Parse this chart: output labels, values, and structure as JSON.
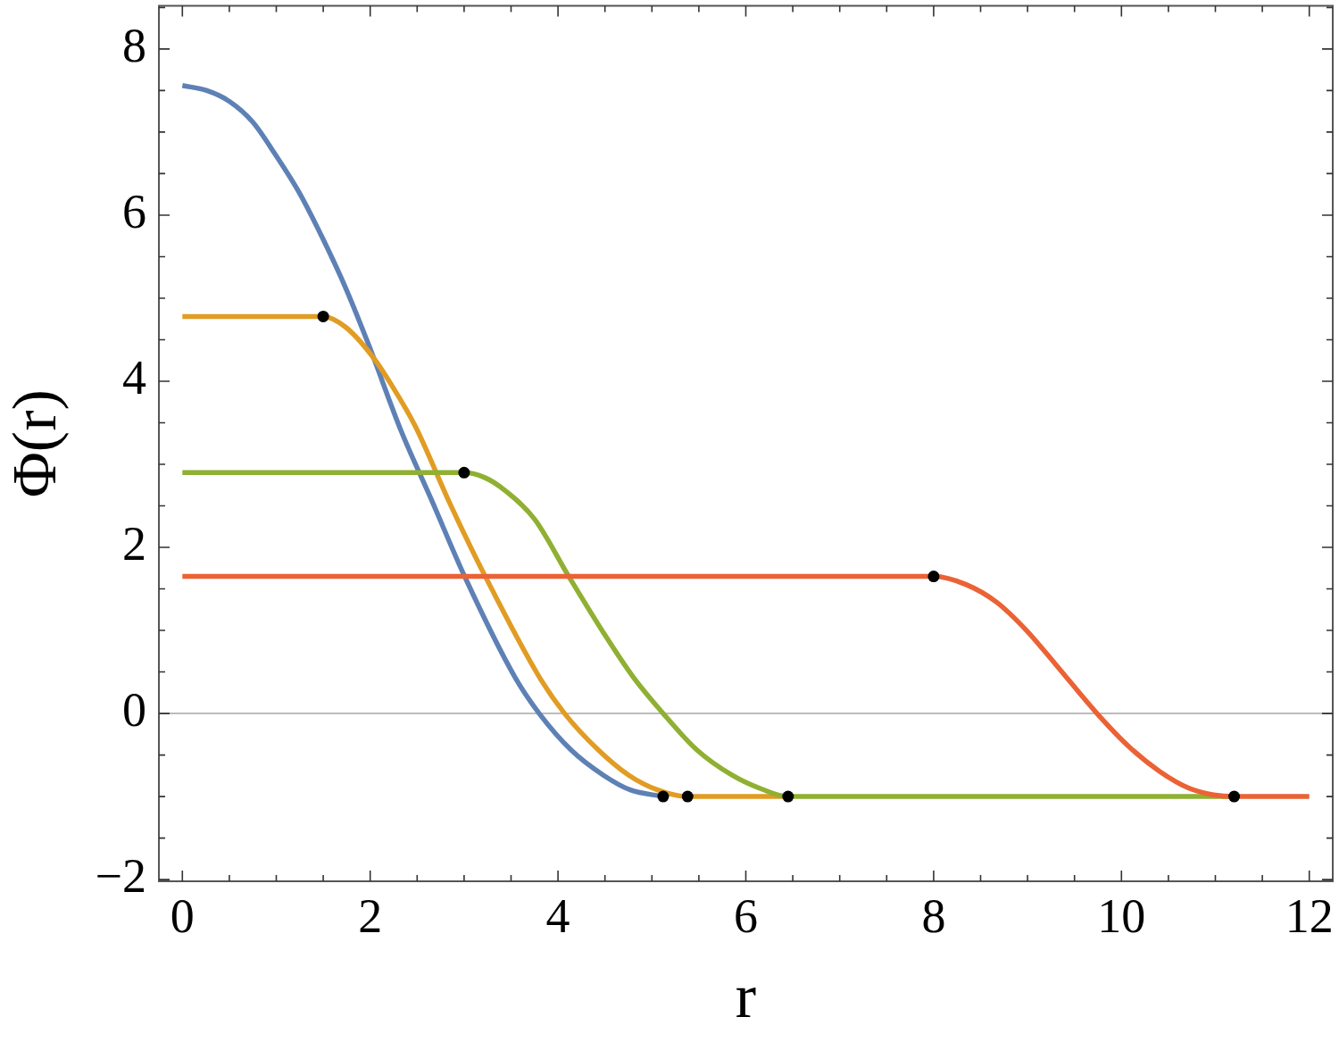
{
  "chart_data": {
    "type": "line",
    "xlabel": "r",
    "ylabel": "Φ(r)",
    "xlim": [
      -0.25,
      12.25
    ],
    "ylim": [
      -2.02,
      8.52
    ],
    "xticks": [
      0,
      {
        "value": 0.5,
        "label": null
      },
      {
        "value": 1,
        "label": null
      },
      {
        "value": 1.5,
        "label": null
      },
      2,
      {
        "value": 2.5,
        "label": null
      },
      {
        "value": 3,
        "label": null
      },
      {
        "value": 3.5,
        "label": null
      },
      4,
      {
        "value": 4.5,
        "label": null
      },
      {
        "value": 5,
        "label": null
      },
      {
        "value": 5.5,
        "label": null
      },
      6,
      {
        "value": 6.5,
        "label": null
      },
      {
        "value": 7,
        "label": null
      },
      {
        "value": 7.5,
        "label": null
      },
      8,
      {
        "value": 8.5,
        "label": null
      },
      {
        "value": 9,
        "label": null
      },
      {
        "value": 9.5,
        "label": null
      },
      10,
      {
        "value": 10.5,
        "label": null
      },
      {
        "value": 11,
        "label": null
      },
      {
        "value": 11.5,
        "label": null
      },
      12
    ],
    "yticks": [
      {
        "value": -2,
        "label": "−2"
      },
      {
        "value": -1.5,
        "label": null
      },
      {
        "value": -1,
        "label": null
      },
      {
        "value": -0.5,
        "label": null
      },
      0,
      {
        "value": 0.5,
        "label": null
      },
      {
        "value": 1,
        "label": null
      },
      {
        "value": 1.5,
        "label": null
      },
      2,
      {
        "value": 2.5,
        "label": null
      },
      {
        "value": 3,
        "label": null
      },
      {
        "value": 3.5,
        "label": null
      },
      4,
      {
        "value": 4.5,
        "label": null
      },
      {
        "value": 5,
        "label": null
      },
      {
        "value": 5.5,
        "label": null
      },
      6,
      {
        "value": 6.5,
        "label": null
      },
      {
        "value": 7,
        "label": null
      },
      {
        "value": 7.5,
        "label": null
      },
      8,
      {
        "value": 8.5,
        "label": null
      }
    ],
    "grid": false,
    "ref_lines": [
      {
        "axis": "y",
        "value": 0,
        "color": "#a6a6a6"
      }
    ],
    "series": [
      {
        "color": "#5e81b5",
        "x": [
          0,
          0.26,
          0.5,
          0.75,
          0.99,
          1.24,
          1.49,
          1.74,
          1.98,
          2.33,
          2.65,
          3.01,
          3.54,
          3.8,
          4.14,
          4.48,
          4.77,
          5.12
        ],
        "values": [
          7.56,
          7.5,
          7.37,
          7.12,
          6.73,
          6.28,
          5.73,
          5.12,
          4.45,
          3.4,
          2.58,
          1.64,
          0.44,
          0,
          -0.44,
          -0.74,
          -0.92,
          -1
        ]
      },
      {
        "color": "#e19c24",
        "x": [
          0,
          1.5,
          1.74,
          2.03,
          2.23,
          2.48,
          2.84,
          3.23,
          3.8,
          4.07,
          4.43,
          4.75,
          5.06,
          5.38,
          6.45
        ],
        "values": [
          4.78,
          4.78,
          4.65,
          4.29,
          3.95,
          3.46,
          2.55,
          1.64,
          0.44,
          0,
          -0.44,
          -0.74,
          -0.92,
          -1,
          -1
        ]
      },
      {
        "color": "#8fb032",
        "x": [
          0,
          3.0,
          3.22,
          3.43,
          3.75,
          4.12,
          4.48,
          4.8,
          5.12,
          5.48,
          5.85,
          6.17,
          6.45,
          11.2
        ],
        "values": [
          2.9,
          2.9,
          2.84,
          2.69,
          2.34,
          1.64,
          0.98,
          0.44,
          0,
          -0.44,
          -0.74,
          -0.91,
          -1,
          -1
        ]
      },
      {
        "color": "#eb6235",
        "x": [
          0,
          8.0,
          8.35,
          8.67,
          8.98,
          9.3,
          9.74,
          10.09,
          10.41,
          10.72,
          10.98,
          11.2,
          12
        ],
        "values": [
          1.65,
          1.65,
          1.55,
          1.34,
          1.01,
          0.59,
          0,
          -0.41,
          -0.7,
          -0.9,
          -0.98,
          -1,
          -1
        ]
      },
      {
        "type": "scatter",
        "color": "#000000",
        "marker": "circle",
        "x": [
          1.5,
          3.0,
          5.12,
          5.38,
          6.45,
          8.0,
          11.2
        ],
        "values": [
          4.78,
          2.9,
          -1,
          -1,
          -1,
          1.65,
          -1
        ]
      }
    ]
  }
}
